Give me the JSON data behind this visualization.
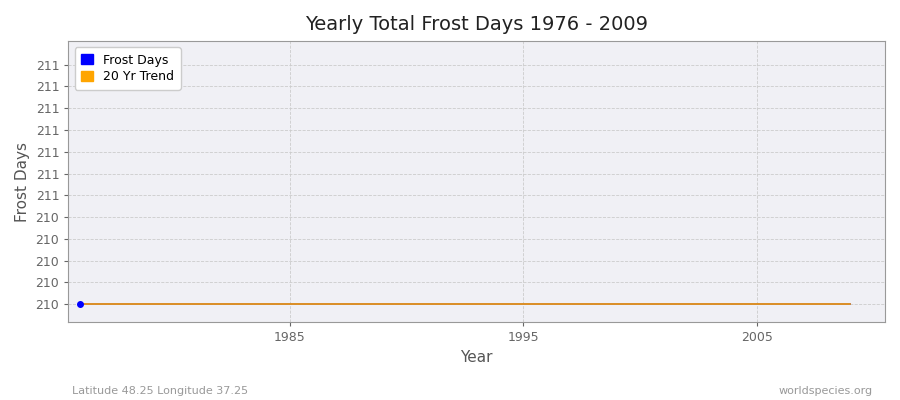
{
  "title": "Yearly Total Frost Days 1976 - 2009",
  "xlabel": "Year",
  "ylabel": "Frost Days",
  "subtitle_left": "Latitude 48.25 Longitude 37.25",
  "subtitle_right": "worldspecies.org",
  "years": [
    1976,
    1977,
    1978,
    1979,
    1980,
    1981,
    1982,
    1983,
    1984,
    1985,
    1986,
    1987,
    1988,
    1989,
    1990,
    1991,
    1992,
    1993,
    1994,
    1995,
    1996,
    1997,
    1998,
    1999,
    2000,
    2001,
    2002,
    2003,
    2004,
    2005,
    2006,
    2007,
    2008,
    2009
  ],
  "frost_days": [
    210,
    210,
    210,
    210,
    210,
    210,
    210,
    210,
    210,
    210,
    210,
    210,
    210,
    210,
    210,
    210,
    210,
    210,
    210,
    210,
    210,
    210,
    210,
    210,
    210,
    210,
    210,
    210,
    210,
    210,
    210,
    210,
    210,
    210
  ],
  "trend_days": [
    210,
    210,
    210,
    210,
    210,
    210,
    210,
    210,
    210,
    210,
    210,
    210,
    210,
    210,
    210,
    210,
    210,
    210,
    210,
    210,
    210,
    210,
    210,
    210,
    210,
    210,
    210,
    210,
    210,
    210,
    210,
    210,
    210,
    210
  ],
  "frost_color": "#0000ff",
  "trend_color": "#ffa500",
  "figure_bg_color": "#ffffff",
  "plot_bg_color": "#f0f0f5",
  "grid_color": "#cccccc",
  "spine_color": "#999999",
  "tick_color": "#666666",
  "title_color": "#222222",
  "label_color": "#555555",
  "annotation_color": "#999999",
  "ylim_low": 209.9,
  "ylim_high": 211.45,
  "xlim_low": 1975.5,
  "xlim_high": 2010.5,
  "ytick_positions": [
    210.0,
    210.12,
    210.24,
    210.36,
    210.48,
    210.6,
    210.72,
    210.84,
    210.96,
    211.08,
    211.2,
    211.32
  ],
  "ytick_labels": [
    "210",
    "210",
    "210",
    "210",
    "210",
    "211",
    "211",
    "211",
    "211",
    "211",
    "211",
    "211"
  ],
  "xticks": [
    1985,
    1995,
    2005
  ],
  "legend_frost": "Frost Days",
  "legend_trend": "20 Yr Trend",
  "title_fontsize": 14,
  "axis_label_fontsize": 11,
  "tick_fontsize": 9,
  "annotation_fontsize": 8,
  "legend_fontsize": 9
}
